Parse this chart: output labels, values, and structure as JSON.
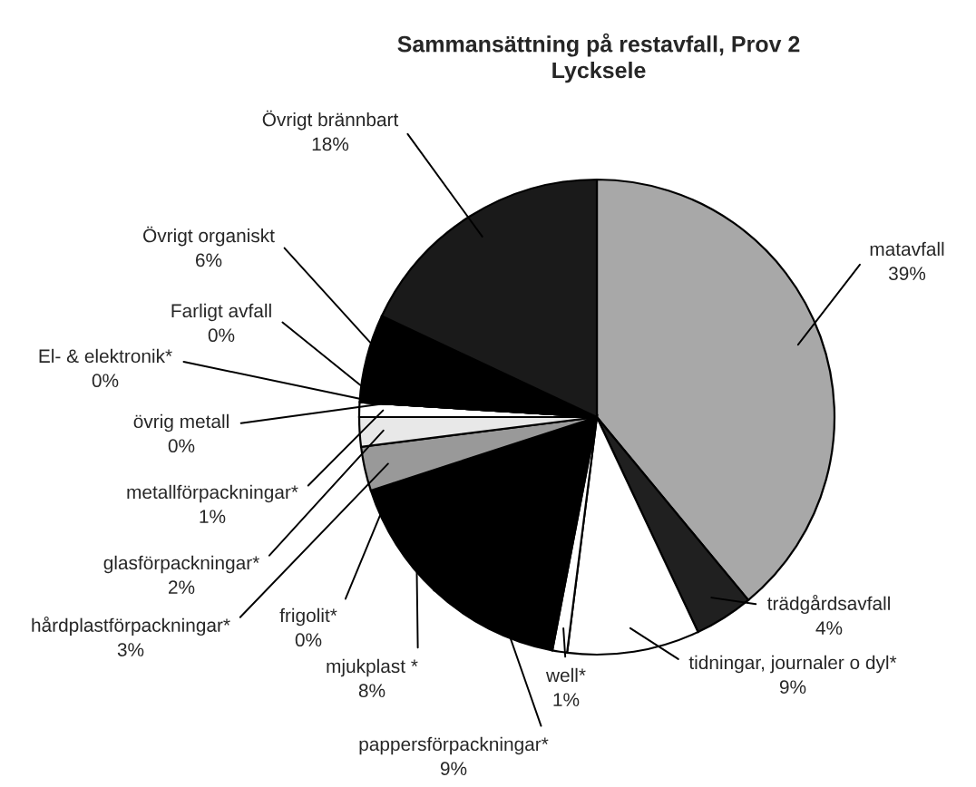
{
  "chart_data": {
    "type": "pie",
    "title": "Sammansättning på restavfall, Prov 2\nLycksele",
    "categories": [
      "matavfall",
      "trädgårdsavfall",
      "tidningar, journaler o dyl*",
      "well*",
      "pappersförpackningar*",
      "mjukplast *",
      "frigolit*",
      "hårdplastförpackningar*",
      "glasförpackningar*",
      "metallförpackningar*",
      "övrig metall",
      "El- & elektronik*",
      "Farligt avfall",
      "Övrigt organiskt",
      "Övrigt brännbart"
    ],
    "values": [
      39,
      4,
      9,
      1,
      9,
      8,
      0,
      3,
      2,
      1,
      0,
      0,
      0,
      6,
      18
    ],
    "value_labels": [
      "39%",
      "4%",
      "9%",
      "1%",
      "9%",
      "8%",
      "0%",
      "3%",
      "2%",
      "1%",
      "0%",
      "0%",
      "0%",
      "6%",
      "18%"
    ],
    "colors": [
      "#a8a8a8",
      "#202020",
      "#ffffff",
      "#ffffff",
      "#000000",
      "#000000",
      "#ffffff",
      "#999999",
      "#e8e8e8",
      "#ffffff",
      "#808080",
      "#808080",
      "#000000",
      "#000000",
      "#1a1a1a"
    ]
  }
}
